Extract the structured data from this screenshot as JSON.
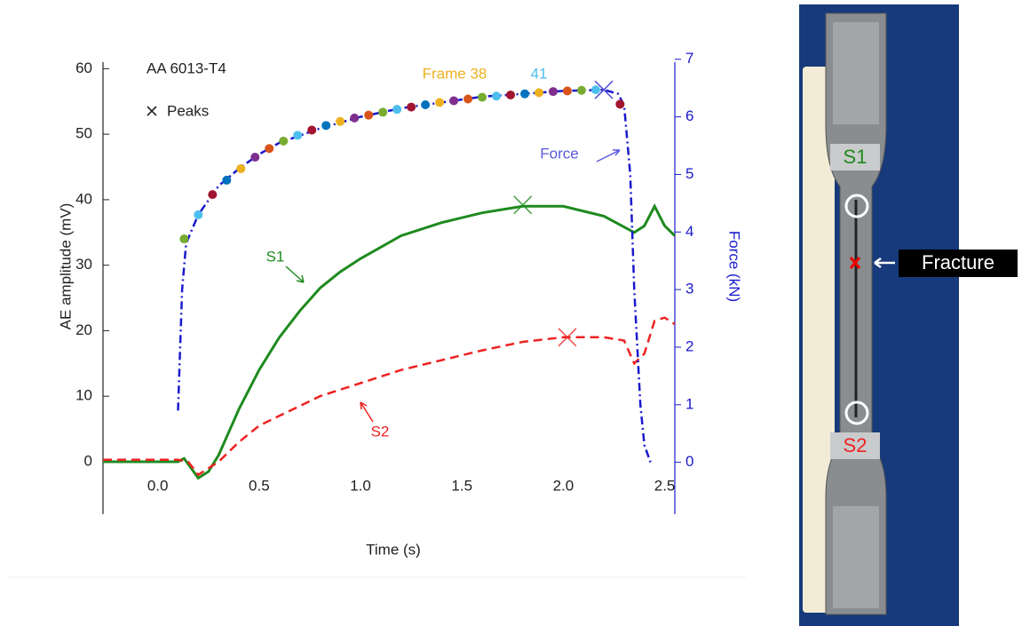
{
  "chart_data": {
    "type": "line",
    "xlabel": "Time (s)",
    "ylabel": "AE amplitude (mV)",
    "y2label": "Force (kN)",
    "xlim": [
      -0.27,
      2.55
    ],
    "ylim": [
      -8,
      61
    ],
    "y2lim": [
      -0.9,
      6.95
    ],
    "xticks": [
      {
        "value": 0,
        "label": "0.0"
      },
      0.5,
      {
        "value": 1,
        "label": "1.0"
      },
      1.5,
      {
        "value": 2,
        "label": "2.0"
      },
      2.5
    ],
    "yticks": [
      0,
      10,
      20,
      30,
      40,
      50,
      60
    ],
    "y2ticks": [
      0,
      1,
      2,
      3,
      4,
      5,
      6,
      7
    ],
    "y2color": "#1a1acc",
    "series": [
      {
        "name": "S1",
        "color": "#1e8a1e",
        "line_style": "solid",
        "x": [
          -0.27,
          0.1,
          0.13,
          0.2,
          0.25,
          0.3,
          0.4,
          0.5,
          0.6,
          0.7,
          0.8,
          0.9,
          1.0,
          1.2,
          1.4,
          1.6,
          1.8,
          2.0,
          2.2,
          2.35,
          2.4,
          2.45,
          2.5,
          2.55
        ],
        "values": [
          0,
          0,
          0.5,
          -2.5,
          -1.5,
          1,
          8,
          14,
          19,
          23,
          26.5,
          29,
          31,
          34.5,
          36.5,
          38,
          39,
          39,
          37.5,
          35,
          36,
          39,
          36,
          34.5
        ],
        "peak": {
          "x": 1.8,
          "value": 39.2
        }
      },
      {
        "name": "S2",
        "color": "#ee2222",
        "line_style": "dashed",
        "x": [
          -0.27,
          0.1,
          0.15,
          0.2,
          0.3,
          0.4,
          0.5,
          0.6,
          0.7,
          0.8,
          0.9,
          1.0,
          1.2,
          1.4,
          1.6,
          1.8,
          2.0,
          2.2,
          2.3,
          2.35,
          2.4,
          2.45,
          2.5,
          2.55
        ],
        "values": [
          0.3,
          0.3,
          0,
          -2,
          0,
          3,
          5.5,
          7,
          8.5,
          10,
          11,
          12,
          14,
          15.5,
          17,
          18.3,
          19,
          19,
          18.5,
          15,
          16.5,
          21.5,
          22,
          21
        ],
        "peak": {
          "x": 2.02,
          "value": 19
        }
      },
      {
        "name": "Force",
        "color": "#1a1acc",
        "line_style": "dashdot",
        "axis": "y2",
        "x": [
          0.1,
          0.12,
          0.14,
          0.2,
          0.3,
          0.4,
          0.5,
          0.6,
          0.8,
          1.0,
          1.2,
          1.4,
          1.6,
          1.8,
          2.0,
          2.2,
          2.27,
          2.3,
          2.33,
          2.35,
          2.38,
          2.4,
          2.43
        ],
        "values": [
          0.9,
          3,
          3.8,
          4.3,
          4.8,
          5.1,
          5.35,
          5.55,
          5.8,
          6.0,
          6.15,
          6.25,
          6.35,
          6.4,
          6.45,
          6.47,
          6.4,
          6.2,
          5.0,
          3.0,
          1.0,
          0.3,
          0
        ],
        "peak": {
          "x": 2.2,
          "value": 6.47
        }
      }
    ],
    "frame_markers": {
      "axis": "y2",
      "x": [
        0.13,
        0.2,
        0.27,
        0.34,
        0.41,
        0.48,
        0.55,
        0.62,
        0.69,
        0.76,
        0.83,
        0.9,
        0.97,
        1.04,
        1.11,
        1.18,
        1.25,
        1.32,
        1.39,
        1.46,
        1.53,
        1.6,
        1.67,
        1.74,
        1.81,
        1.88,
        1.95,
        2.02,
        2.09,
        2.16,
        2.28
      ],
      "values": [
        3.88,
        4.3,
        4.65,
        4.9,
        5.1,
        5.3,
        5.45,
        5.58,
        5.68,
        5.77,
        5.85,
        5.92,
        5.98,
        6.03,
        6.08,
        6.13,
        6.17,
        6.21,
        6.25,
        6.28,
        6.31,
        6.34,
        6.36,
        6.38,
        6.4,
        6.42,
        6.44,
        6.45,
        6.46,
        6.47,
        6.22
      ],
      "color_cycle": [
        "#77ac30",
        "#4dbeee",
        "#a2142f",
        "#0072bd",
        "#edb120",
        "#7e2f8e",
        "#d95319"
      ]
    },
    "annotations": {
      "alloy": "AA 6013-T4",
      "peaks": "Peaks",
      "frame38": "Frame 38",
      "frame41": "41"
    }
  },
  "photo": {
    "fracture": "Fracture"
  }
}
